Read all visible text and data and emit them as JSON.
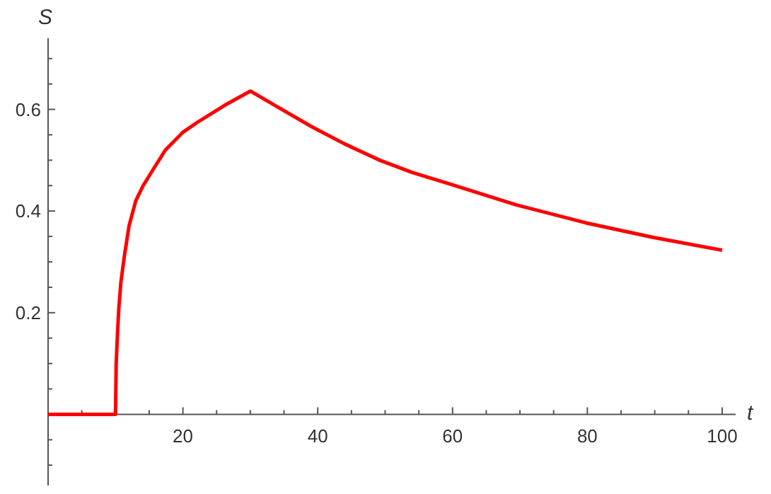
{
  "chart_data": {
    "type": "line",
    "xlabel": "t",
    "ylabel": "S",
    "x": [
      0,
      10,
      10.1,
      10.3,
      10.5,
      10.8,
      11.3,
      12,
      13,
      14.1,
      15.5,
      17.4,
      20,
      22.2,
      26.2,
      30,
      34,
      39.1,
      44,
      49.2,
      54,
      59.4,
      69.5,
      79.7,
      89.8,
      100
    ],
    "series": [
      {
        "color": "#ff0000",
        "values": [
          0,
          0,
          0.1,
          0.16,
          0.21,
          0.26,
          0.31,
          0.37,
          0.42,
          0.45,
          0.48,
          0.52,
          0.555,
          0.575,
          0.608,
          0.636,
          0.605,
          0.566,
          0.532,
          0.5,
          0.476,
          0.454,
          0.412,
          0.377,
          0.348,
          0.323
        ]
      }
    ],
    "xlim": [
      0,
      102
    ],
    "ylim": [
      -0.14,
      0.74
    ],
    "xticks": [
      {
        "value": 5,
        "label": null
      },
      {
        "value": 10,
        "label": null
      },
      {
        "value": 15,
        "label": null
      },
      20,
      {
        "value": 25,
        "label": null
      },
      {
        "value": 30,
        "label": null
      },
      {
        "value": 35,
        "label": null
      },
      40,
      {
        "value": 45,
        "label": null
      },
      {
        "value": 50,
        "label": null
      },
      {
        "value": 55,
        "label": null
      },
      60,
      {
        "value": 65,
        "label": null
      },
      {
        "value": 70,
        "label": null
      },
      {
        "value": 75,
        "label": null
      },
      80,
      {
        "value": 85,
        "label": null
      },
      {
        "value": 90,
        "label": null
      },
      {
        "value": 95,
        "label": null
      },
      100
    ],
    "yticks": [
      {
        "value": -0.1,
        "label": null
      },
      {
        "value": -0.05,
        "label": null
      },
      {
        "value": 0.05,
        "label": null
      },
      {
        "value": 0.1,
        "label": null
      },
      {
        "value": 0.15,
        "label": null
      },
      0.2,
      {
        "value": 0.25,
        "label": null
      },
      {
        "value": 0.3,
        "label": null
      },
      {
        "value": 0.35,
        "label": null
      },
      0.4,
      {
        "value": 0.45,
        "label": null
      },
      {
        "value": 0.5,
        "label": null
      },
      {
        "value": 0.55,
        "label": null
      },
      0.6,
      {
        "value": 0.65,
        "label": null
      },
      {
        "value": 0.7,
        "label": null
      }
    ],
    "grid": false,
    "marker": "none",
    "line_style": "solid"
  }
}
